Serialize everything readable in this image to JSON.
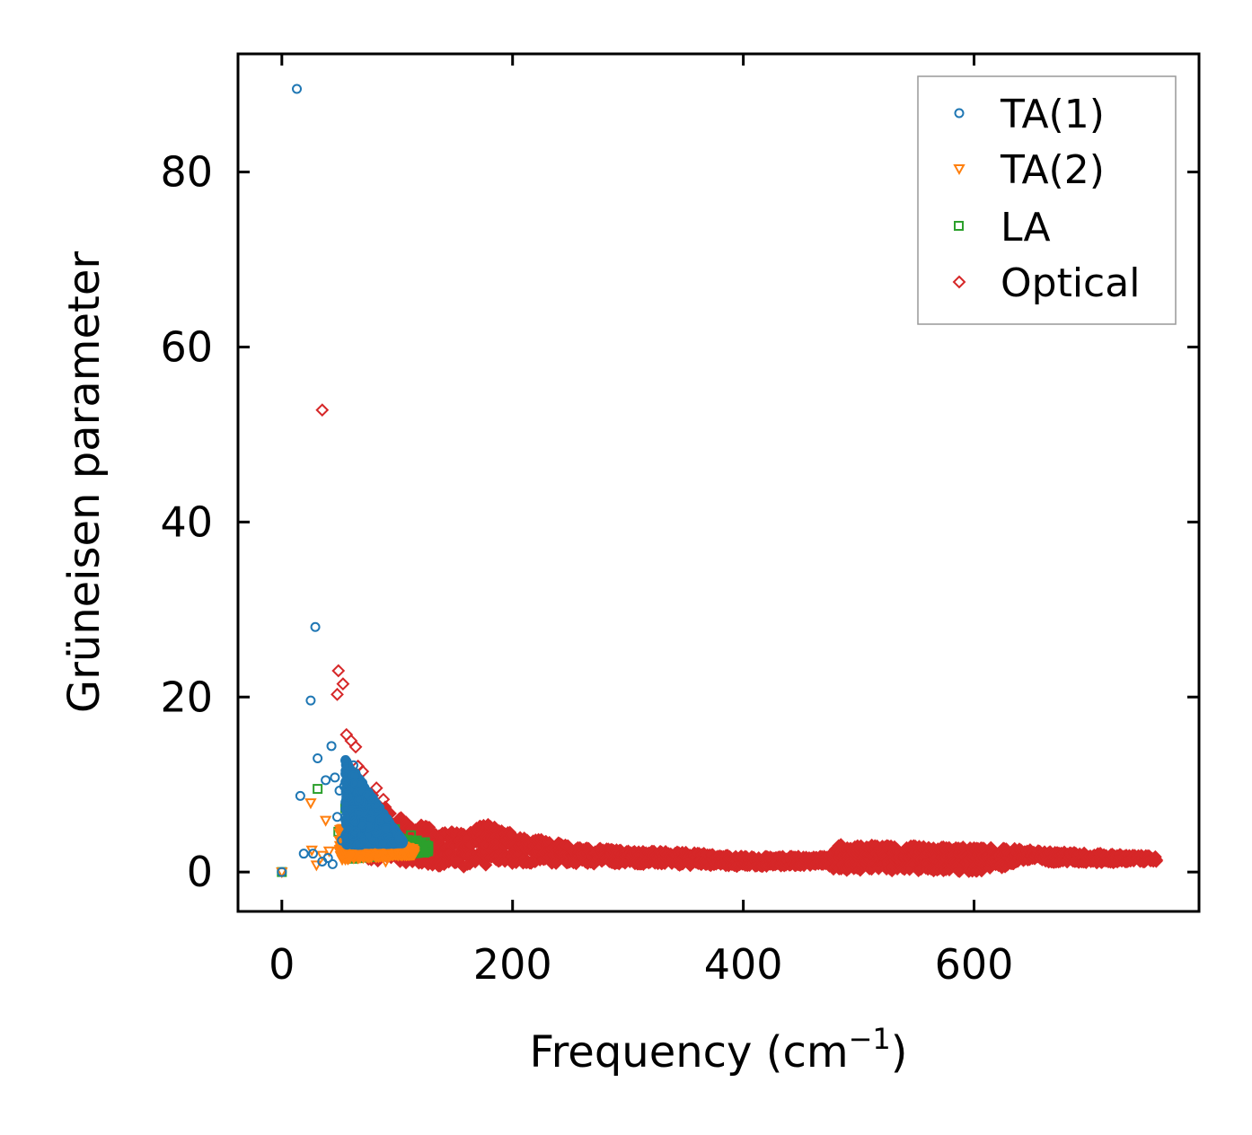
{
  "chart_data": {
    "type": "scatter",
    "title": "",
    "xlabel": "Frequency (cm",
    "xlabel_exponent": "−1",
    "xlabel_suffix": ")",
    "ylabel": "Grüneisen parameter",
    "xlim": [
      -38,
      795
    ],
    "ylim": [
      -4.5,
      93.5
    ],
    "xticks": [
      0,
      200,
      400,
      600
    ],
    "yticks": [
      0,
      20,
      40,
      60,
      80
    ],
    "xtick_labels": [
      "0",
      "200",
      "400",
      "600"
    ],
    "ytick_labels": [
      "0",
      "20",
      "40",
      "60",
      "80"
    ],
    "grid": false,
    "legend_position": "top-right",
    "series": [
      {
        "name": "TA(1)",
        "marker": "circle",
        "color": "#1f77b4",
        "points": [
          [
            0,
            0
          ],
          [
            13,
            89.5
          ],
          [
            29,
            28
          ],
          [
            25,
            19.6
          ],
          [
            16,
            8.7
          ],
          [
            19,
            2.1
          ],
          [
            31,
            13
          ],
          [
            43,
            14.4
          ],
          [
            46,
            10.8
          ],
          [
            38,
            10.5
          ],
          [
            50,
            9.3
          ],
          [
            54,
            9.8
          ],
          [
            57,
            8.6
          ],
          [
            48,
            6.3
          ],
          [
            55,
            6.3
          ],
          [
            60,
            6.3
          ],
          [
            52,
            3.6
          ],
          [
            58,
            3.6
          ],
          [
            62,
            12.2
          ],
          [
            40,
            1.6
          ],
          [
            44,
            0.9
          ],
          [
            35,
            1.2
          ],
          [
            27,
            2.1
          ],
          [
            62,
            4.2
          ],
          [
            66,
            3.1
          ]
        ],
        "cluster": {
          "x_range": [
            55,
            105
          ],
          "y_center": 3.5,
          "y_spread_top": 9.5,
          "y_spread_bottom": 0.5,
          "density": "dense"
        }
      },
      {
        "name": "TA(2)",
        "marker": "triangle-down",
        "color": "#ff7f0e",
        "points": [
          [
            0,
            0
          ],
          [
            25,
            7.9
          ],
          [
            38,
            5.9
          ],
          [
            26,
            2.5
          ],
          [
            30,
            0.8
          ],
          [
            41,
            2.4
          ],
          [
            35,
            1.9
          ],
          [
            56,
            2.3
          ],
          [
            62,
            3.8
          ],
          [
            90,
            1.2
          ]
        ],
        "cluster": {
          "x_range": [
            50,
            115
          ],
          "y_center": 2.6,
          "y_spread_top": 2.5,
          "y_spread_bottom": 1.2,
          "density": "dense"
        }
      },
      {
        "name": "LA",
        "marker": "square",
        "color": "#2ca02c",
        "points": [
          [
            0,
            0
          ],
          [
            31,
            9.5
          ],
          [
            49,
            4.6
          ],
          [
            57,
            4.5
          ],
          [
            64,
            4.5
          ],
          [
            55,
            7.3
          ],
          [
            60,
            2.5
          ],
          [
            98,
            4.9
          ],
          [
            112,
            4.2
          ],
          [
            117,
            3.6
          ],
          [
            124,
            3.4
          ],
          [
            106,
            2.0
          ]
        ],
        "cluster": {
          "x_range": [
            60,
            127
          ],
          "y_center": 3.0,
          "y_spread_top": 2.5,
          "y_spread_bottom": 1.5,
          "density": "dense"
        }
      },
      {
        "name": "Optical",
        "marker": "diamond",
        "color": "#d62728",
        "points": [
          [
            35,
            52.8
          ],
          [
            49,
            23
          ],
          [
            53,
            21.5
          ],
          [
            48,
            20.3
          ],
          [
            56,
            15.7
          ],
          [
            60,
            15.0
          ],
          [
            64,
            14.3
          ],
          [
            66,
            12.1
          ],
          [
            70,
            11.5
          ],
          [
            82,
            9.6
          ],
          [
            88,
            8.3
          ]
        ],
        "band": {
          "x_range": [
            60,
            758
          ],
          "upper": [
            [
              60,
              11.5
            ],
            [
              80,
              8.5
            ],
            [
              100,
              6.5
            ],
            [
              130,
              5.0
            ],
            [
              160,
              4.5
            ],
            [
              170,
              5.8
            ],
            [
              200,
              4.5
            ],
            [
              250,
              3.0
            ],
            [
              300,
              2.5
            ],
            [
              360,
              2.2
            ],
            [
              400,
              1.8
            ],
            [
              470,
              1.8
            ],
            [
              475,
              3.2
            ],
            [
              550,
              3.0
            ],
            [
              640,
              2.7
            ],
            [
              658,
              2.4
            ],
            [
              700,
              2.2
            ],
            [
              758,
              1.8
            ]
          ],
          "lower": [
            [
              60,
              1.5
            ],
            [
              100,
              1.0
            ],
            [
              150,
              0.5
            ],
            [
              200,
              1.0
            ],
            [
              300,
              0.9
            ],
            [
              400,
              0.6
            ],
            [
              470,
              0.8
            ],
            [
              480,
              0.2
            ],
            [
              600,
              0.0
            ],
            [
              625,
              0.5
            ],
            [
              640,
              1.2
            ],
            [
              700,
              1.0
            ],
            [
              758,
              1.2
            ]
          ]
        }
      }
    ]
  }
}
